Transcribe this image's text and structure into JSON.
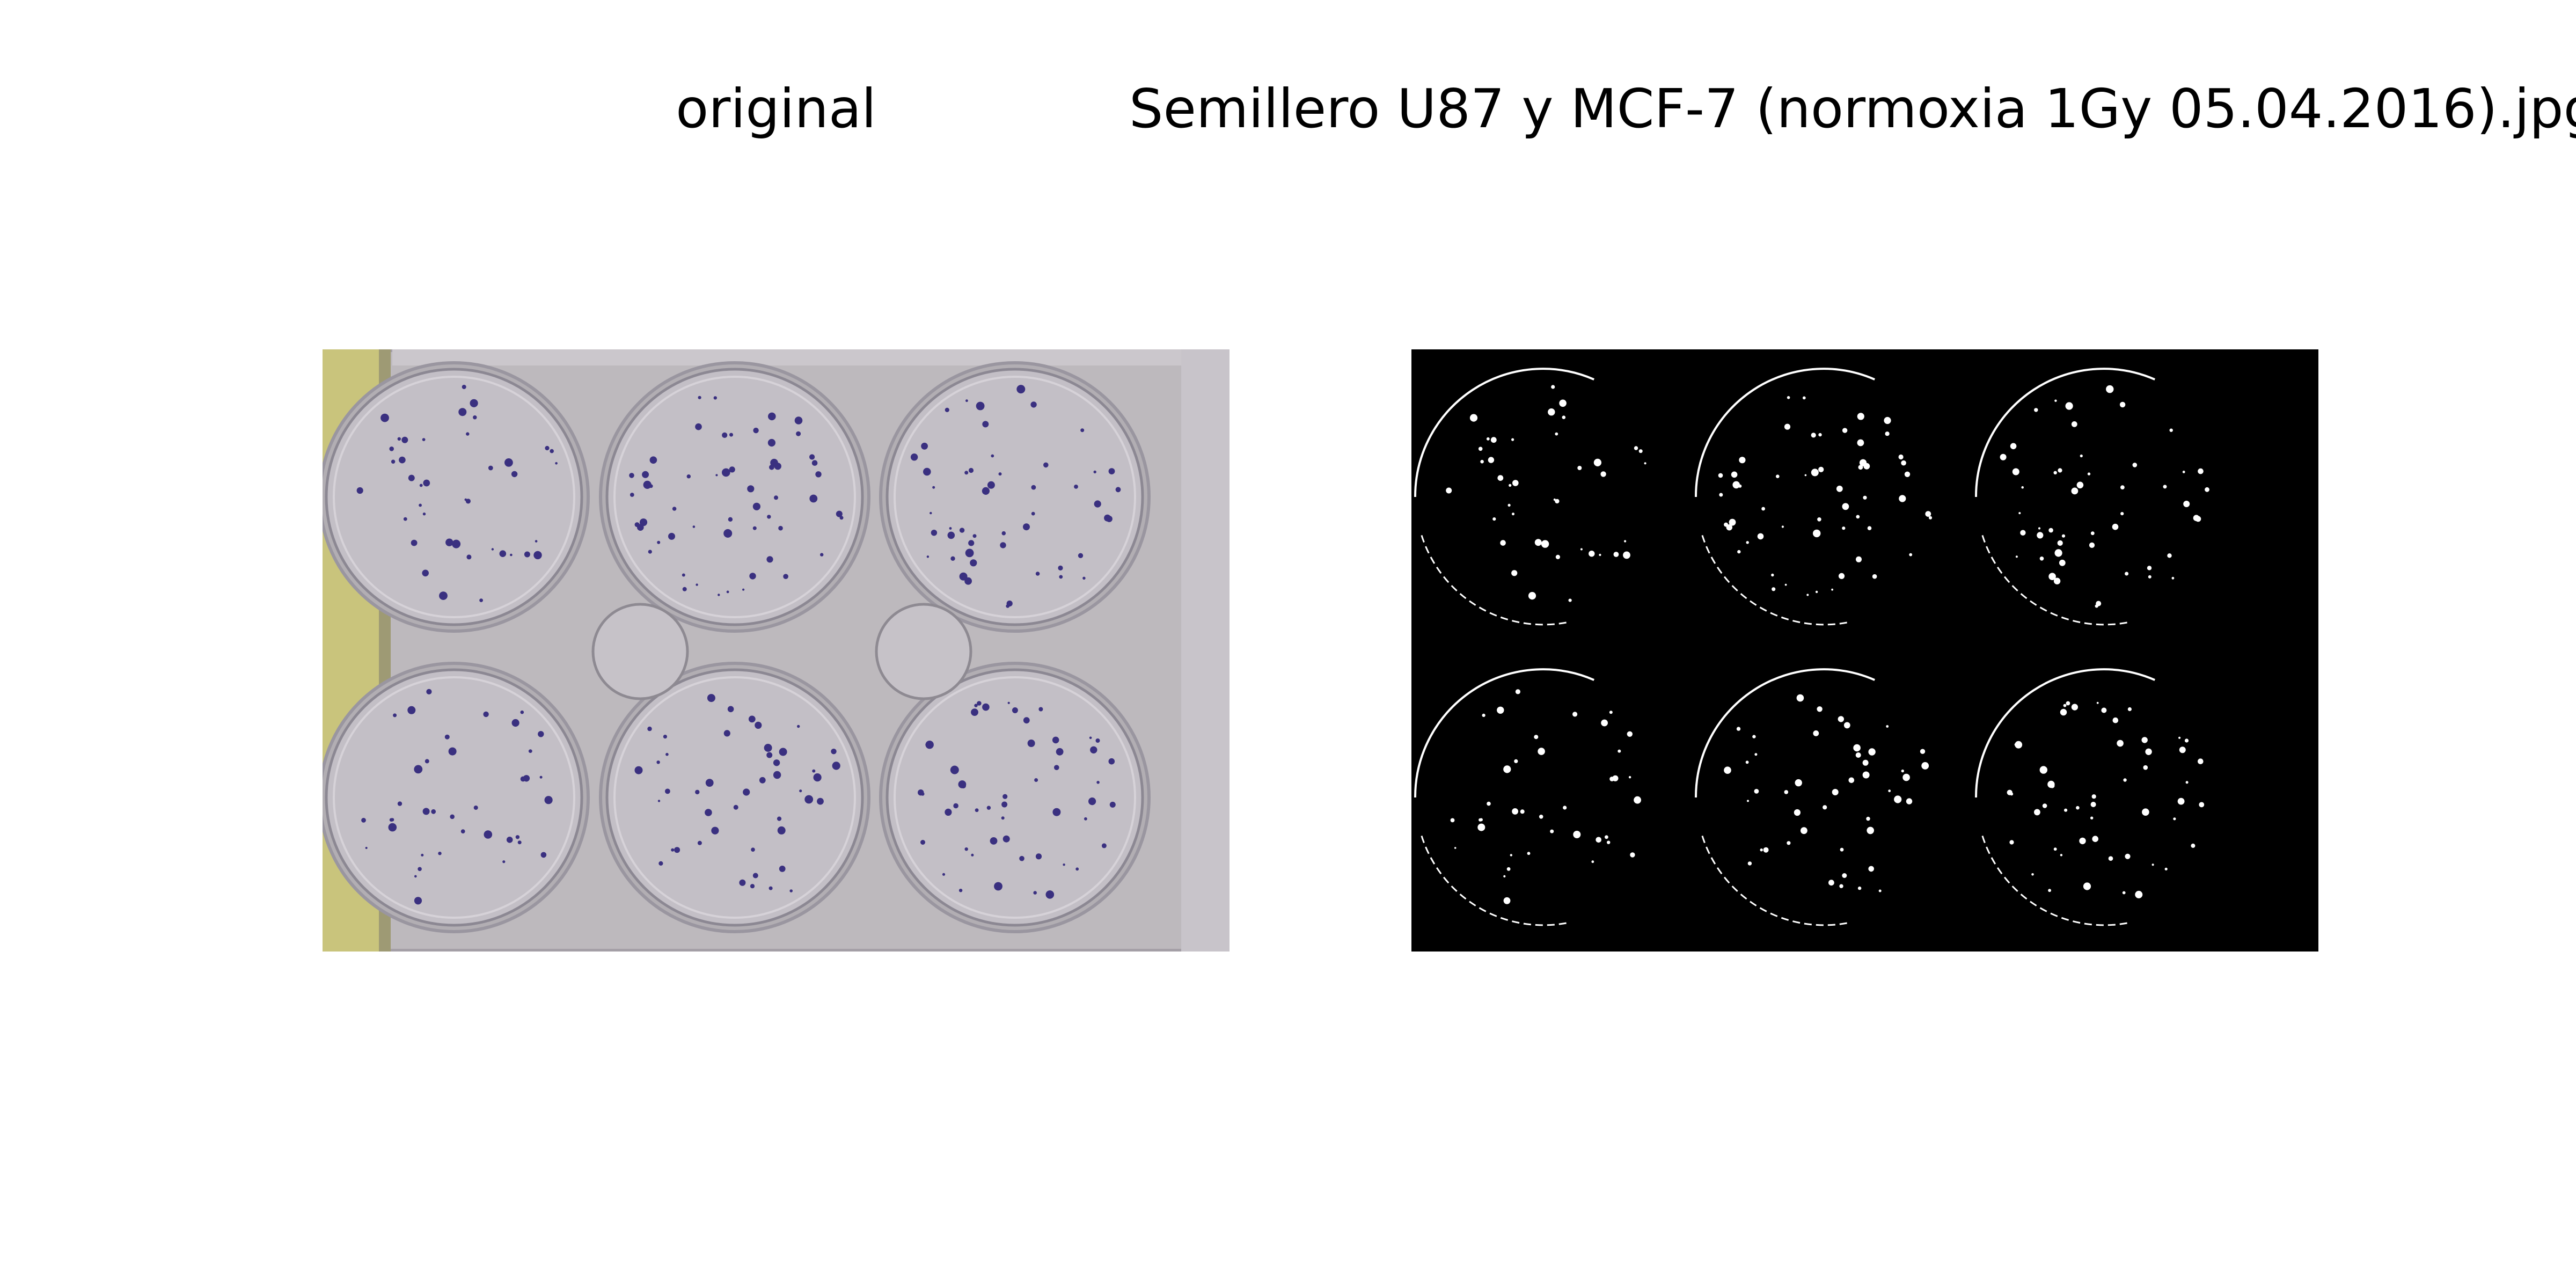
{
  "figure": {
    "left_title": "original",
    "right_title": "Semillero U87 y MCF-7 (normoxia 1Gy 05.04.2016).jpg"
  },
  "images": {
    "left": {
      "subject": "six-well-culture-plate-photo",
      "colors": {
        "plate": "#b8b4b8",
        "well": "#c4c0c6",
        "label_strip": "#c9c47c",
        "colony": "#3a3080"
      }
    },
    "right": {
      "subject": "binary-colony-mask",
      "colors": {
        "background": "#000000",
        "foreground": "#ffffff"
      }
    }
  }
}
